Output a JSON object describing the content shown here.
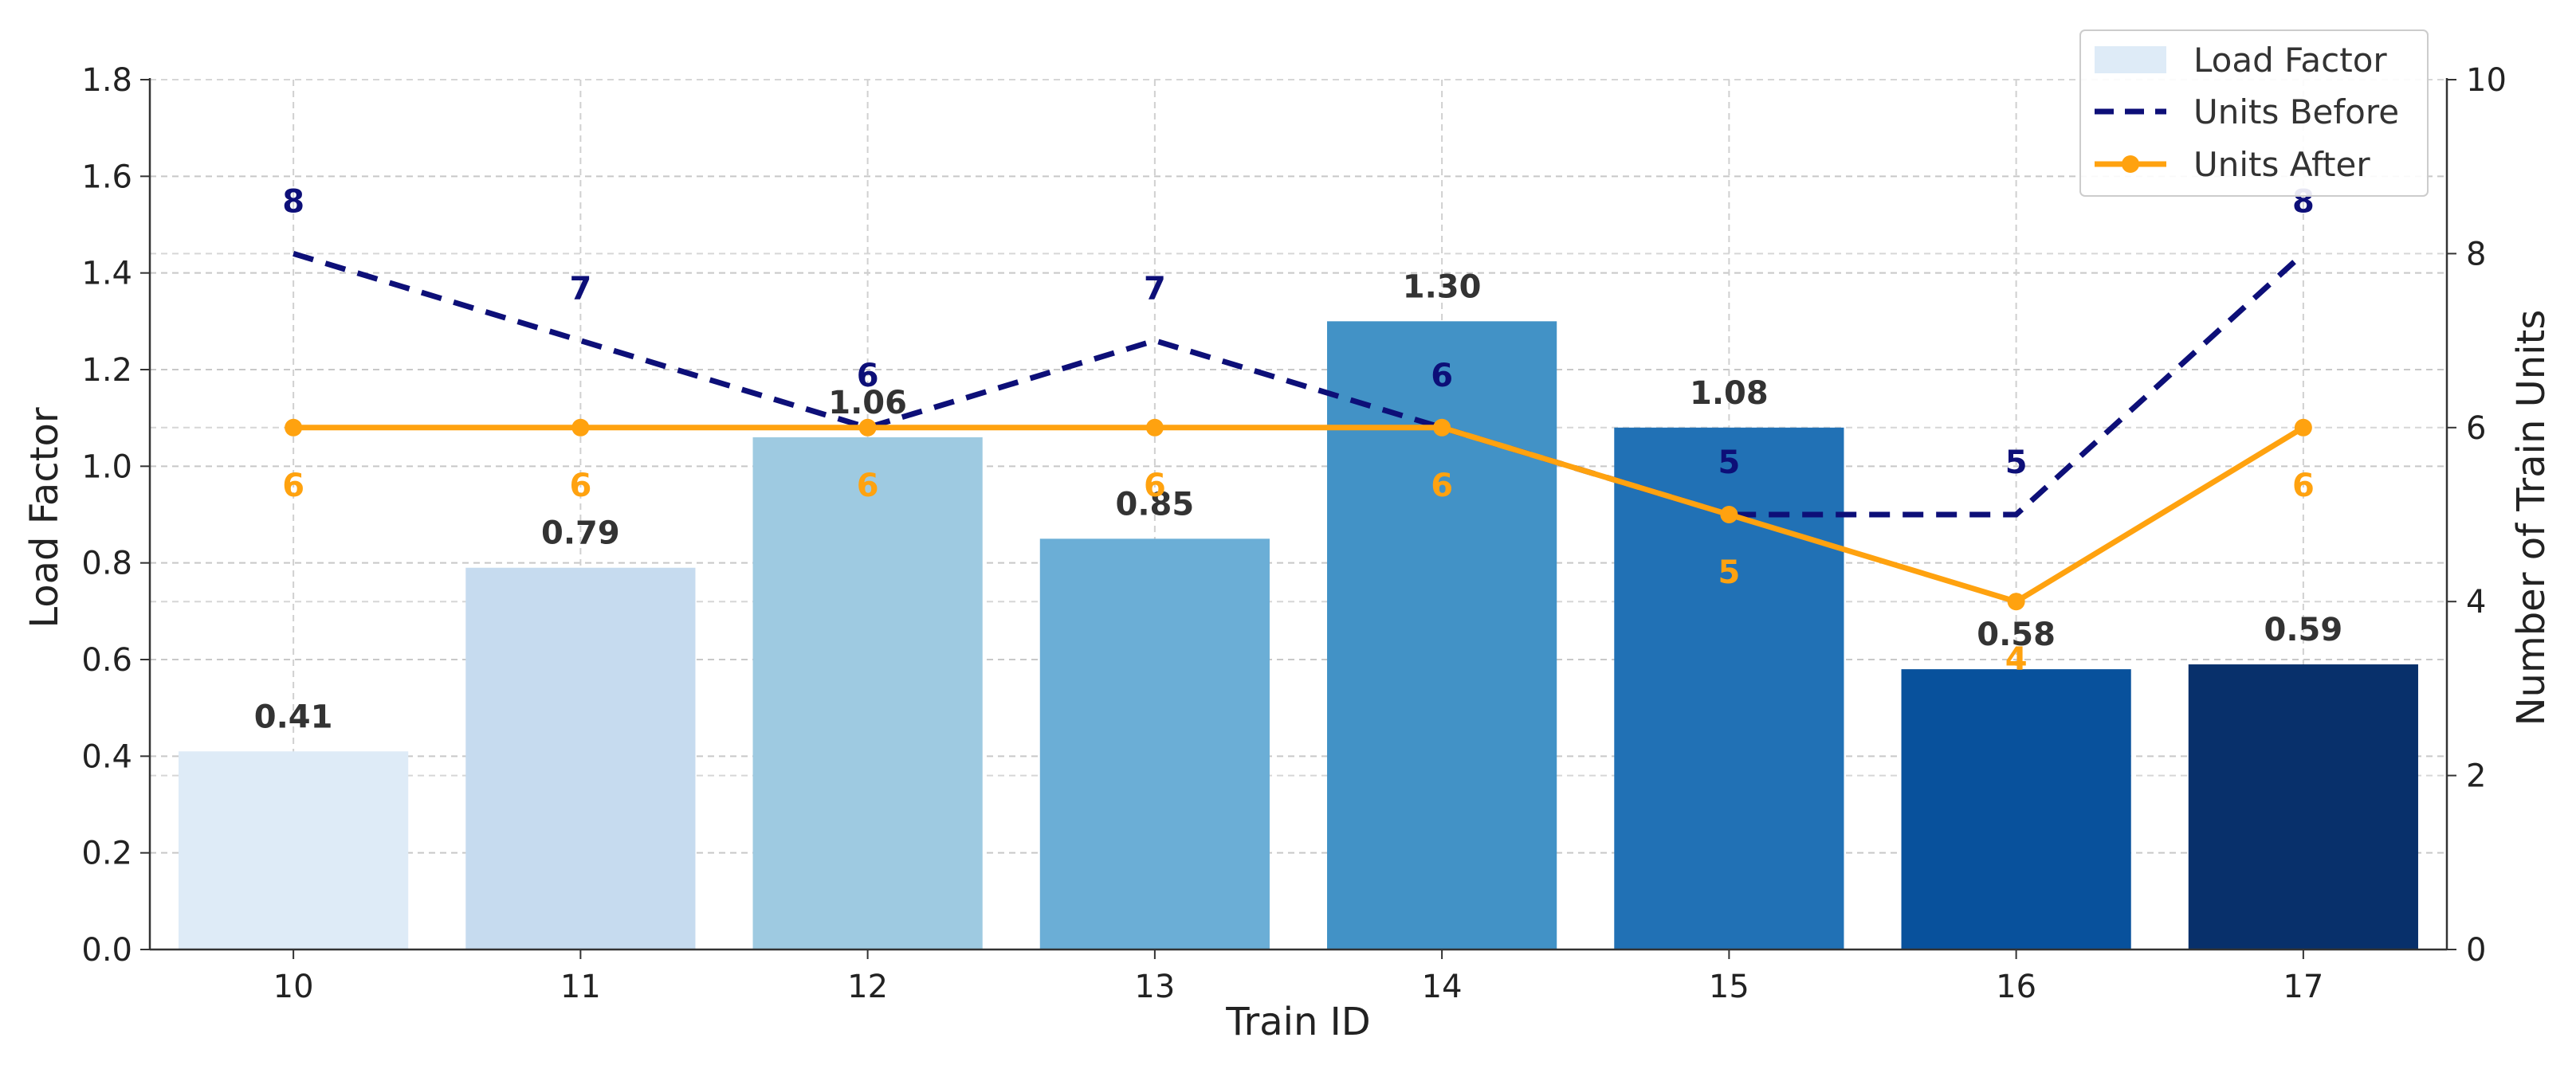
{
  "chart_data": {
    "type": "bar",
    "title": "",
    "xlabel": "Train ID",
    "ylabel": "Load Factor",
    "y2label": "Number of Train Units",
    "categories": [
      "10",
      "11",
      "12",
      "13",
      "14",
      "15",
      "16",
      "17"
    ],
    "ylim": [
      0,
      1.8
    ],
    "yticks": [
      "0.0",
      "0.2",
      "0.4",
      "0.6",
      "0.8",
      "1.0",
      "1.2",
      "1.4",
      "1.6",
      "1.8"
    ],
    "y2lim": [
      0,
      10
    ],
    "y2ticks": [
      "0",
      "2",
      "4",
      "6",
      "8",
      "10"
    ],
    "grid": true,
    "legend_position": "top-right",
    "series": [
      {
        "name": "Load Factor",
        "kind": "bar",
        "axis": "left",
        "values": [
          0.41,
          0.79,
          1.06,
          0.85,
          1.3,
          1.08,
          0.58,
          0.59
        ],
        "labels": [
          "0.41",
          "0.79",
          "1.06",
          "0.85",
          "1.30",
          "1.08",
          "0.58",
          "0.59"
        ],
        "colors": [
          "#deebf7",
          "#c6dbef",
          "#9ecae1",
          "#6baed6",
          "#4292c6",
          "#2171b5",
          "#08519c",
          "#08306b"
        ],
        "legend_color": "#deebf7"
      },
      {
        "name": "Units Before",
        "kind": "line",
        "style": "dashed",
        "axis": "right",
        "color": "#0d0f78",
        "values": [
          8,
          7,
          6,
          7,
          6,
          5,
          5,
          8
        ],
        "labels": [
          "8",
          "7",
          "6",
          "7",
          "6",
          "5",
          "5",
          "8"
        ]
      },
      {
        "name": "Units After",
        "kind": "line",
        "style": "solid-markers",
        "axis": "right",
        "color": "#ffa20f",
        "values": [
          6,
          6,
          6,
          6,
          6,
          5,
          4,
          6
        ],
        "labels": [
          "6",
          "6",
          "6",
          "6",
          "6",
          "5",
          "4",
          "6"
        ]
      }
    ]
  }
}
